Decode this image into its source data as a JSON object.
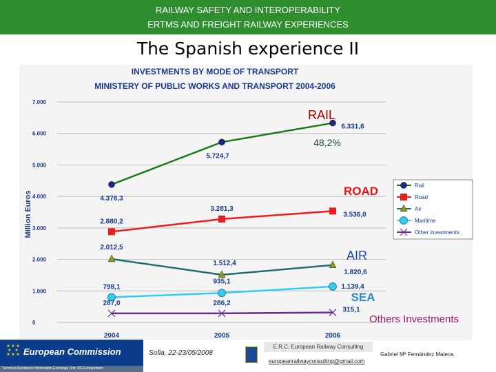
{
  "header": {
    "line1": "RAILWAY SAFETY AND INTEROPERABILITY",
    "line2": "ERTMS AND FREIGHT RAILWAY EXPERIENCES"
  },
  "slide_title": "The Spanish experience II",
  "chart_data": {
    "type": "line",
    "title": "INVESTMENTS BY MODE OF TRANSPORT",
    "subtitle": "MINISTERY OF PUBLIC WORKS AND TRANSPORT 2004-2006",
    "xlabel": "",
    "ylabel": "Million Euros",
    "categories": [
      "2004",
      "2005",
      "2006"
    ],
    "ylim": [
      0,
      7000
    ],
    "y_ticks": [
      "0",
      "1.000",
      "2.000",
      "3.000",
      "4.000",
      "5.000",
      "6.000",
      "7.000"
    ],
    "grid": true,
    "legend_position": "right",
    "series": [
      {
        "name": "Rail",
        "values": [
          4378.3,
          5724.7,
          6331.6
        ],
        "labels": [
          "4.378,3",
          "5.724,7",
          "6.331,6"
        ],
        "color": "#1a7a1a",
        "marker": "circle-blue"
      },
      {
        "name": "Road",
        "values": [
          2880.2,
          3281.3,
          3536.0
        ],
        "labels": [
          "2.880,2",
          "3.281,3",
          "3.536,0"
        ],
        "color": "#ee1c1c",
        "marker": "square-red"
      },
      {
        "name": "Air",
        "values": [
          2012.5,
          1512.4,
          1820.6
        ],
        "labels": [
          "2.012,5",
          "1.512,4",
          "1.820,6"
        ],
        "color": "#1f6f6f",
        "marker": "triangle-olive"
      },
      {
        "name": "Maritime",
        "values": [
          798.1,
          935.1,
          1139.4
        ],
        "labels": [
          "798,1",
          "935,1",
          "1.139,4"
        ],
        "color": "#33ccee",
        "marker": "circle-cyan"
      },
      {
        "name": "Other investments",
        "values": [
          287.0,
          286.2,
          315.1
        ],
        "labels": [
          "287,0",
          "286,2",
          "315,1"
        ],
        "color": "#6a2c8a",
        "marker": "cross-purple"
      }
    ],
    "annotations": {
      "rail": "RAIL",
      "rail_share": "48,2%",
      "road": "ROAD",
      "air": "AIR",
      "sea": "SEA",
      "others": "Others Investments"
    },
    "colors": {
      "rail_label": "#a00000",
      "road_label": "#ee1111",
      "air_label": "#1a4a9a",
      "sea_label": "#2a8ad0",
      "others_label": "#9a1a6a",
      "share_label": "#1a4a2a"
    }
  },
  "footer": {
    "org": "European Commission",
    "unit": "Technical Assistance Information Exchange Unit, DG Enlargement",
    "date": "Sofia, 22-23/05/2008",
    "erc": "E.R.C. European Railway Consulting",
    "email": "europeanrailwayconsulting@gmail.com",
    "author": "Gabriel Mª Fernández Mateos"
  }
}
